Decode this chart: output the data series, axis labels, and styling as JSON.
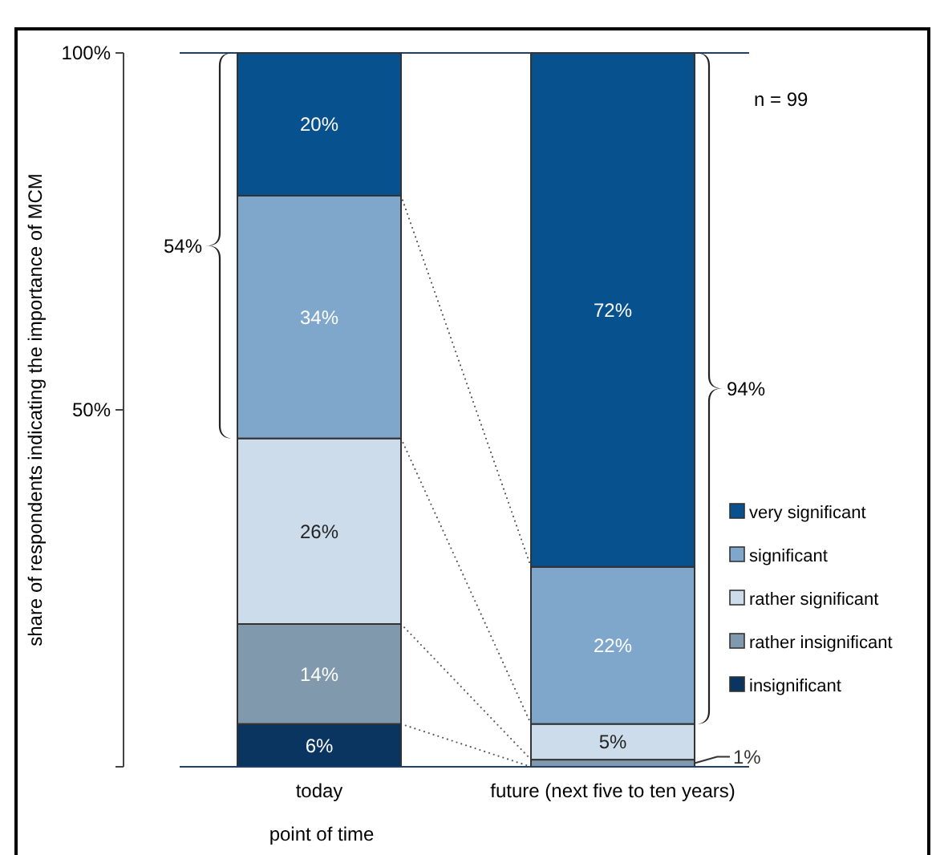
{
  "chart_data": {
    "type": "bar",
    "stacked": true,
    "ylabel": "share of respondents indicating the importance of MCM",
    "xlabel": "point of time",
    "categories": [
      "today",
      "future (next five to ten years)"
    ],
    "ylim": [
      0,
      100
    ],
    "yticks": [
      {
        "value": 0,
        "label": null
      },
      {
        "value": 50,
        "label": "50%"
      },
      {
        "value": 100,
        "label": "100%"
      }
    ],
    "series": [
      {
        "name": "insignificant",
        "color": "#0b3561",
        "values": [
          6,
          0
        ],
        "value_labels": [
          "6%",
          null
        ]
      },
      {
        "name": "rather insignificant",
        "color": "#8099ad",
        "values": [
          14,
          1
        ],
        "value_labels": [
          "14%",
          "1%"
        ]
      },
      {
        "name": "rather significant",
        "color": "#cddcea",
        "values": [
          26,
          5
        ],
        "value_labels": [
          "26%",
          "5%"
        ]
      },
      {
        "name": "significant",
        "color": "#7fa7cc",
        "values": [
          34,
          22
        ],
        "value_labels": [
          "34%",
          "22%"
        ]
      },
      {
        "name": "very significant",
        "color": "#07518f",
        "values": [
          20,
          72
        ],
        "value_labels": [
          "20%",
          "72%"
        ]
      }
    ],
    "legend": "right",
    "grid": false,
    "annotations": [
      "54%",
      "94%",
      "n = 99"
    ]
  }
}
